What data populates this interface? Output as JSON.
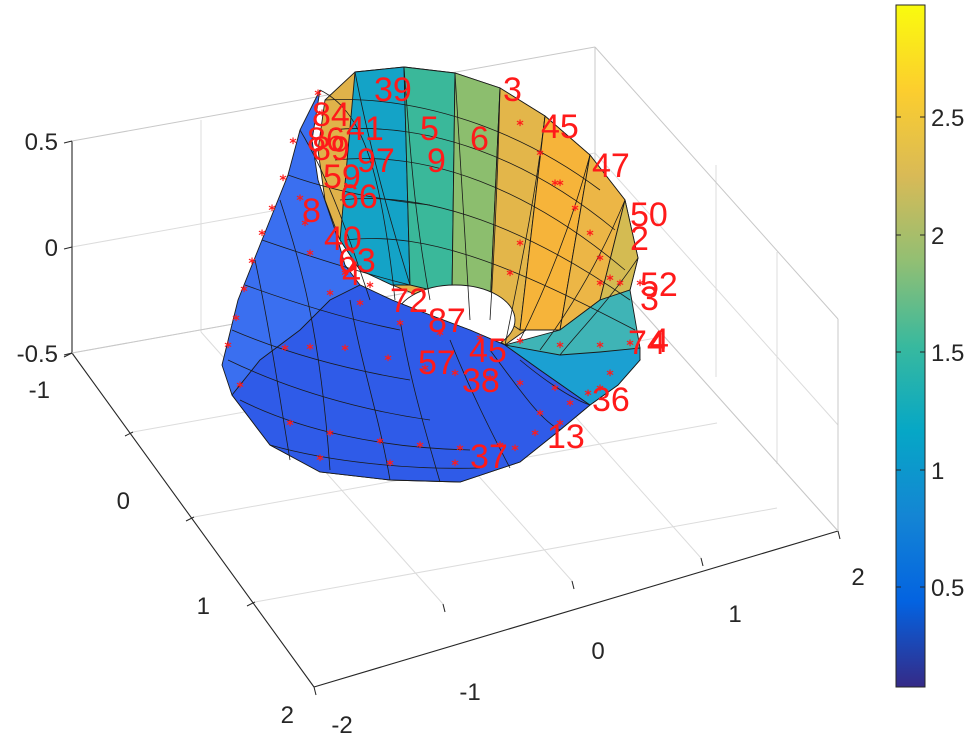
{
  "chart_data": {
    "type": "surface3d",
    "title": "",
    "shape": "truncated cone / tube surface with facet mesh, colored by height",
    "x_ticks": [
      "-2",
      "-1",
      "0",
      "1",
      "2"
    ],
    "y_ticks": [
      "-1",
      "0",
      "1",
      "2"
    ],
    "z_ticks": [
      "-0.5",
      "0",
      "0.5"
    ],
    "xlim": [
      -2,
      2
    ],
    "ylim": [
      -1,
      2
    ],
    "zlim": [
      -0.5,
      0.5
    ],
    "grid": true,
    "colormap": "parula",
    "colorbar": {
      "ticks": [
        "0.5",
        "1",
        "1.5",
        "2",
        "2.5"
      ],
      "range": [
        0.05,
        2.95
      ],
      "stops": [
        "#352a87",
        "#0363e1",
        "#1485d4",
        "#06a7c6",
        "#38b99e",
        "#92bf73",
        "#d9ba56",
        "#fcce2e",
        "#f9fb0e"
      ]
    },
    "marker_color": "#ff1a1a",
    "point_labels": [
      {
        "text": "39",
        "pos": [
          374,
          101
        ]
      },
      {
        "text": "3",
        "pos": [
          503,
          101
        ]
      },
      {
        "text": "84",
        "pos": [
          312,
          126
        ]
      },
      {
        "text": "45",
        "pos": [
          541,
          138
        ]
      },
      {
        "text": "41",
        "pos": [
          346,
          140
        ]
      },
      {
        "text": "5",
        "pos": [
          420,
          140
        ]
      },
      {
        "text": "86",
        "pos": [
          307,
          151
        ]
      },
      {
        "text": "6",
        "pos": [
          470,
          150
        ]
      },
      {
        "text": "89",
        "pos": [
          312,
          160
        ]
      },
      {
        "text": "97",
        "pos": [
          357,
          172
        ]
      },
      {
        "text": "9",
        "pos": [
          427,
          172
        ]
      },
      {
        "text": "47",
        "pos": [
          592,
          177
        ]
      },
      {
        "text": "59",
        "pos": [
          323,
          188
        ]
      },
      {
        "text": "66",
        "pos": [
          340,
          208
        ]
      },
      {
        "text": "8",
        "pos": [
          302,
          222
        ]
      },
      {
        "text": "50",
        "pos": [
          630,
          226
        ]
      },
      {
        "text": "2",
        "pos": [
          630,
          250
        ]
      },
      {
        "text": "40",
        "pos": [
          324,
          250
        ]
      },
      {
        "text": "63",
        "pos": [
          338,
          272
        ]
      },
      {
        "text": "4",
        "pos": [
          342,
          285
        ]
      },
      {
        "text": "52",
        "pos": [
          640,
          296
        ]
      },
      {
        "text": "3",
        "pos": [
          640,
          310
        ]
      },
      {
        "text": "72",
        "pos": [
          390,
          312
        ]
      },
      {
        "text": "87",
        "pos": [
          428,
          332
        ]
      },
      {
        "text": "4",
        "pos": [
          650,
          352
        ]
      },
      {
        "text": "74",
        "pos": [
          628,
          354
        ]
      },
      {
        "text": "45",
        "pos": [
          469,
          362
        ]
      },
      {
        "text": "57",
        "pos": [
          418,
          374
        ]
      },
      {
        "text": "38",
        "pos": [
          462,
          392
        ]
      },
      {
        "text": "36",
        "pos": [
          592,
          411
        ]
      },
      {
        "text": "13",
        "pos": [
          547,
          448
        ]
      },
      {
        "text": "37",
        "pos": [
          470,
          468
        ]
      }
    ]
  }
}
